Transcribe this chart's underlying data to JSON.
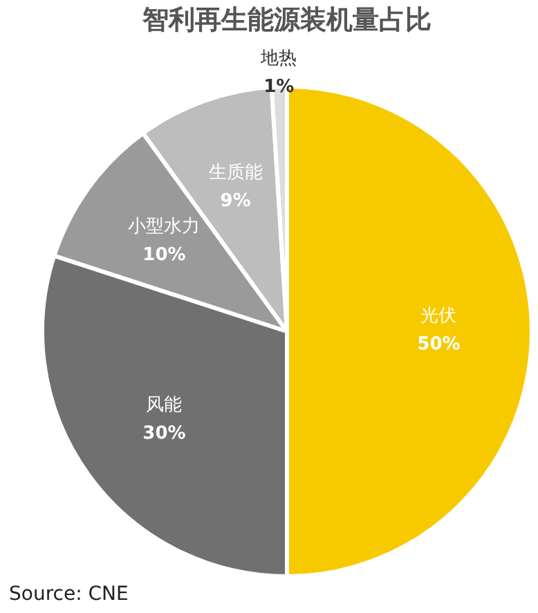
{
  "chart_data": {
    "type": "pie",
    "title": "智利再生能源装机量占比",
    "categories": [
      "光伏",
      "风能",
      "小型水力",
      "生质能",
      "地热"
    ],
    "values": [
      50,
      30,
      10,
      9,
      1
    ],
    "value_labels": [
      "50%",
      "30%",
      "10%",
      "9%",
      "1%"
    ],
    "colors": [
      "#f7ca00",
      "#707070",
      "#9a9a9a",
      "#bdbdbd",
      "#dcdcdc"
    ],
    "annotations": [
      "Source: CNE"
    ]
  }
}
